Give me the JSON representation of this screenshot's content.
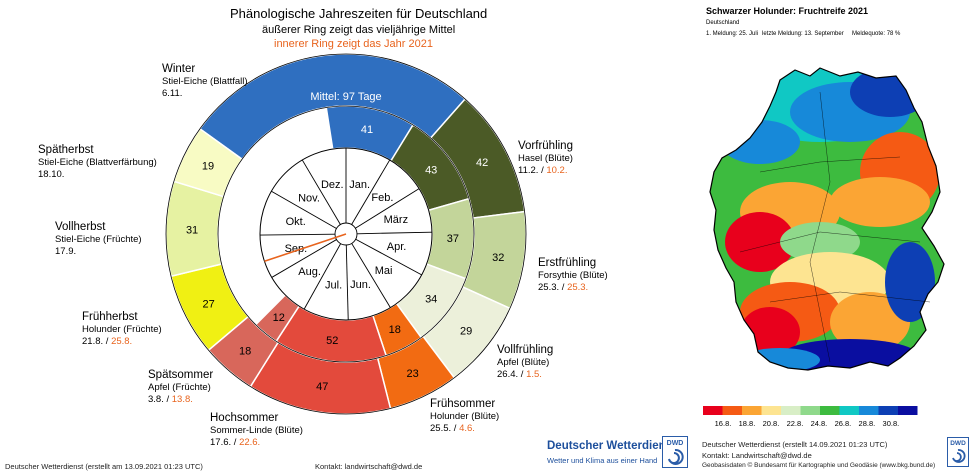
{
  "title": "Phänologische Jahreszeiten für Deutschland",
  "subtitle_outer": "äußerer Ring zeigt das vieljährige Mittel",
  "subtitle_inner": "innerer Ring zeigt das Jahr 2021",
  "colors": {
    "Winter": "#2f6fc0",
    "Vorfrühling": "#4b5a26",
    "Erstfrühling": "#c3d59a",
    "Vollfrühling": "#ecf0da",
    "Frühsommer": "#f26b12",
    "Hochsommer": "#e34a3c",
    "Spätsommer": "#d8675b",
    "Frühherbst": "#f0f013",
    "Vollherbst": "#e6f2a2",
    "Spätherbst": "#f8fbc4",
    "accent": "#e8641e"
  },
  "chart_data": [
    {
      "type": "pie",
      "title": "Phänologische Jahreszeiten für Deutschland",
      "rings": [
        {
          "name": "äußerer Ring zeigt das vieljährige Mittel",
          "start_day": 0,
          "slices": [
            {
              "season": "Winter",
              "value": 97,
              "label": "Mittel: 97 Tage"
            },
            {
              "season": "Vorfrühling",
              "value": 42,
              "label": "42"
            },
            {
              "season": "Erstfrühling",
              "value": 32,
              "label": "32"
            },
            {
              "season": "Vollfrühling",
              "value": 29,
              "label": "29"
            },
            {
              "season": "Frühsommer",
              "value": 23,
              "label": "23"
            },
            {
              "season": "Hochsommer",
              "value": 47,
              "label": "47"
            },
            {
              "season": "Spätsommer",
              "value": 18,
              "label": "18"
            },
            {
              "season": "Frühherbst",
              "value": 27,
              "label": "27"
            },
            {
              "season": "Vollherbst",
              "value": 31,
              "label": "31"
            },
            {
              "season": "Spätherbst",
              "value": 19,
              "label": "19"
            }
          ]
        },
        {
          "name": "innerer Ring zeigt das Jahr 2021",
          "start_day": 0,
          "slices": [
            {
              "season": "Winter",
              "value": 41,
              "label": "41"
            },
            {
              "season": "Vorfrühling",
              "value": 43,
              "label": "43"
            },
            {
              "season": "Erstfrühling",
              "value": 37,
              "label": "37"
            },
            {
              "season": "Vollfrühling",
              "value": 34,
              "label": "34"
            },
            {
              "season": "Frühsommer",
              "value": 18,
              "label": "18"
            },
            {
              "season": "Hochsommer",
              "value": 52,
              "label": "52"
            },
            {
              "season": "Spätsommer",
              "value": 12,
              "label": "12"
            },
            {
              "season": "Frühherbst",
              "value": 0,
              "label": ""
            }
          ]
        }
      ],
      "months": [
        "Jan.",
        "Feb.",
        "März",
        "Apr.",
        "Mai",
        "Jun.",
        "Jul.",
        "Aug.",
        "Sep.",
        "Okt.",
        "Nov.",
        "Dez."
      ],
      "current_date_marker": "13.9.2021"
    },
    {
      "type": "heatmap",
      "title": "Schwarzer Holunder: Fruchtreife 2021",
      "legend_ticks": [
        "16.8.",
        "18.8.",
        "20.8.",
        "22.8.",
        "24.8.",
        "26.8.",
        "28.8.",
        "30.8."
      ],
      "legend_colors": [
        "#e8001c",
        "#f55a14",
        "#fba534",
        "#fde491",
        "#d8eec6",
        "#8fd98b",
        "#3dbb3f",
        "#10c8c4",
        "#1789d9",
        "#0d3fb4",
        "#0a0ea0"
      ]
    }
  ],
  "season_labels": [
    {
      "key": "winter",
      "name": "Winter",
      "plant": "Stiel-Eiche (Blattfall)",
      "mean": "6.11.",
      "year": ""
    },
    {
      "key": "vorfruehling",
      "name": "Vorfrühling",
      "plant": "Hasel (Blüte)",
      "mean": "11.2. /",
      "year": "10.2."
    },
    {
      "key": "erstfruehling",
      "name": "Erstfrühling",
      "plant": "Forsythie (Blüte)",
      "mean": "25.3. /",
      "year": "25.3."
    },
    {
      "key": "vollfruehling",
      "name": "Vollfrühling",
      "plant": "Apfel (Blüte)",
      "mean": "26.4. /",
      "year": "1.5."
    },
    {
      "key": "fruehsommer",
      "name": "Frühsommer",
      "plant": "Holunder (Blüte)",
      "mean": "25.5. /",
      "year": "4.6."
    },
    {
      "key": "hochsommer",
      "name": "Hochsommer",
      "plant": "Sommer-Linde (Blüte)",
      "mean": "17.6. /",
      "year": "22.6."
    },
    {
      "key": "spaetsommer",
      "name": "Spätsommer",
      "plant": "Apfel (Früchte)",
      "mean": "3.8. /",
      "year": "13.8."
    },
    {
      "key": "fruehherbst",
      "name": "Frühherbst",
      "plant": "Holunder (Früchte)",
      "mean": "21.8. /",
      "year": "25.8."
    },
    {
      "key": "vollherbst",
      "name": "Vollherbst",
      "plant": "Stiel-Eiche (Früchte)",
      "mean": "17.9.",
      "year": ""
    },
    {
      "key": "spaetherbst",
      "name": "Spätherbst",
      "plant": "Stiel-Eiche (Blattverfärbung)",
      "mean": "18.10.",
      "year": ""
    }
  ],
  "footer": {
    "left": "Deutscher Wetterdienst (erstellt am 13.09.2021 01:23 UTC)",
    "contact": "Kontakt: landwirtschaft@dwd.de",
    "brand": "Deutscher Wetterdienst",
    "tagline": "Wetter und Klima aus einer Hand",
    "logo": "DWD"
  },
  "map": {
    "region": "Deutschland",
    "first_report": "1. Meldung: 25. Juli",
    "last_report": "letzte Meldung: 13. September",
    "report_rate": "Meldequote: 78 %",
    "credit_line1": "Deutscher Wetterdienst (erstellt 14.09.2021 01:23 UTC)",
    "credit_line2": "Kontakt: Landwirtschaft@dwd.de",
    "credit_line3": "Geobasisdaten © Bundesamt für Kartographie und Geodäsie (www.bkg.bund.de)",
    "logo": "DWD"
  }
}
